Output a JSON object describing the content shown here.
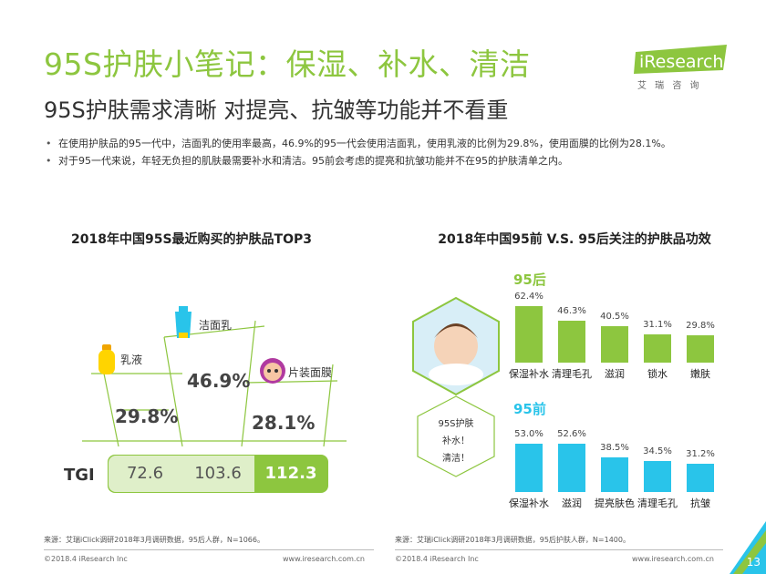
{
  "header": {
    "title": "95S护肤小笔记：保湿、补水、清洁",
    "subtitle": "95S护肤需求清晰 对提亮、抗皱等功能并不看重",
    "logo_text": "iResearch",
    "logo_sub": "艾 瑞 咨 询"
  },
  "bullets": [
    "在使用护肤品的95一代中，洁面乳的使用率最高，46.9%的95一代会使用洁面乳，使用乳液的比例为29.8%，使用面膜的比例为28.1%。",
    "对于95一代来说，年轻无负担的肌肤最需要补水和清洁。95前会考虑的提亮和抗皱功能并不在95的护肤清单之内。"
  ],
  "left_chart": {
    "title": "2018年中国95S最近购买的护肤品TOP3",
    "products": [
      {
        "name": "乳液",
        "pct": "29.8%"
      },
      {
        "name": "洁面乳",
        "pct": "46.9%"
      },
      {
        "name": "片装面膜",
        "pct": "28.1%"
      }
    ],
    "tgi_label": "TGI",
    "tgi_values": [
      "72.6",
      "103.6",
      "112.3"
    ]
  },
  "center_bubble": [
    "95S护肤",
    "补水！",
    "清洁！"
  ],
  "right_chart": {
    "title": "2018年中国95前 V.S. 95后关注的护肤品功效"
  },
  "chart_data": [
    {
      "type": "bar",
      "title": "95后",
      "categories": [
        "保湿补水",
        "清理毛孔",
        "滋润",
        "锁水",
        "嫩肤"
      ],
      "values": [
        62.4,
        46.3,
        40.5,
        31.1,
        29.8
      ],
      "labels": [
        "62.4%",
        "46.3%",
        "40.5%",
        "31.1%",
        "29.8%"
      ],
      "ylim": [
        0,
        70
      ],
      "color": "#8dc63f"
    },
    {
      "type": "bar",
      "title": "95前",
      "categories": [
        "保湿补水",
        "滋润",
        "提亮肤色",
        "清理毛孔",
        "抗皱"
      ],
      "values": [
        53.0,
        52.6,
        38.5,
        34.5,
        31.2
      ],
      "labels": [
        "53.0%",
        "52.6%",
        "38.5%",
        "34.5%",
        "31.2%"
      ],
      "ylim": [
        0,
        70
      ],
      "color": "#29c4ea"
    }
  ],
  "footer": {
    "left_note": "来源：艾瑞iClick调研2018年3月调研数据，95后人群，N=1066。",
    "right_note": "来源：艾瑞iClick调研2018年3月调研数据，95后护肤人群，N=1400。",
    "copyright_left": "©2018.4 iResearch Inc",
    "url_left": "www.iresearch.com.cn",
    "copyright_right": "©2018.4 iResearch Inc",
    "url_right": "www.iresearch.com.cn",
    "page": "13"
  },
  "colors": {
    "green": "#8dc63f",
    "blue": "#29c4ea"
  }
}
